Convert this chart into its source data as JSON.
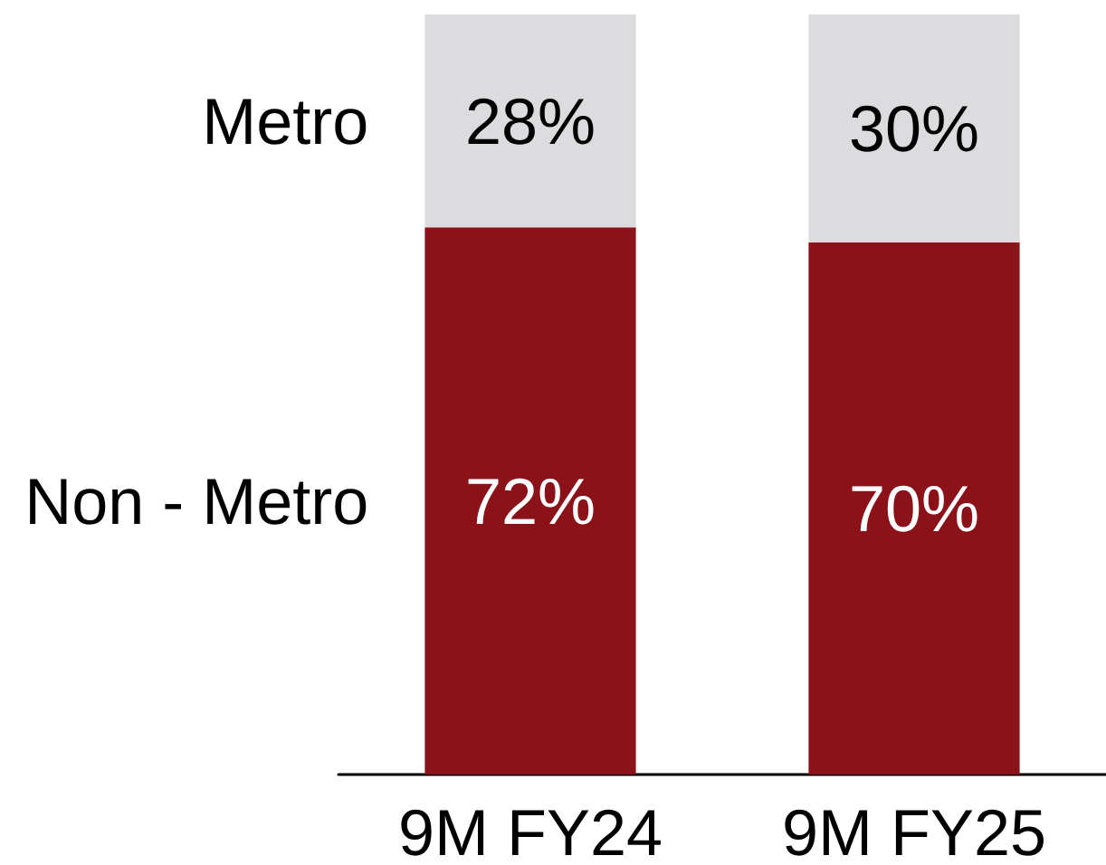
{
  "chart_data": {
    "type": "bar",
    "stacked": true,
    "categories": [
      "9M FY24",
      "9M FY25"
    ],
    "series": [
      {
        "name": "Non - Metro",
        "color": "#8b1219",
        "values": [
          72,
          70
        ],
        "value_labels": [
          "72%",
          "70%"
        ]
      },
      {
        "name": "Metro",
        "color": "#dcdcde",
        "values": [
          28,
          30
        ],
        "value_labels": [
          "28%",
          "30%"
        ]
      }
    ],
    "ylim": [
      0,
      100
    ],
    "tick_labels": "x"
  }
}
